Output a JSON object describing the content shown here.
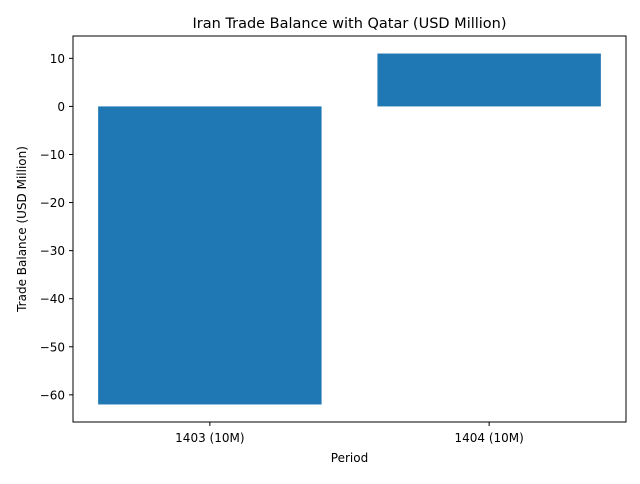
{
  "chart_data": {
    "type": "bar",
    "title": "Iran Trade Balance with Qatar (USD Million)",
    "xlabel": "Period",
    "ylabel": "Trade Balance (USD Million)",
    "categories": [
      "1403 (10M)",
      "1404 (10M)"
    ],
    "values": [
      -62,
      11
    ],
    "ylim": [
      -65.65,
      14.65
    ],
    "yticks": [
      -60,
      -50,
      -40,
      -30,
      -20,
      -10,
      0,
      10
    ],
    "ytick_labels": [
      "−60",
      "−50",
      "−40",
      "−30",
      "−20",
      "−10",
      "0",
      "10"
    ],
    "grid": false,
    "legend": "none",
    "bar_color": "#1f77b4"
  }
}
